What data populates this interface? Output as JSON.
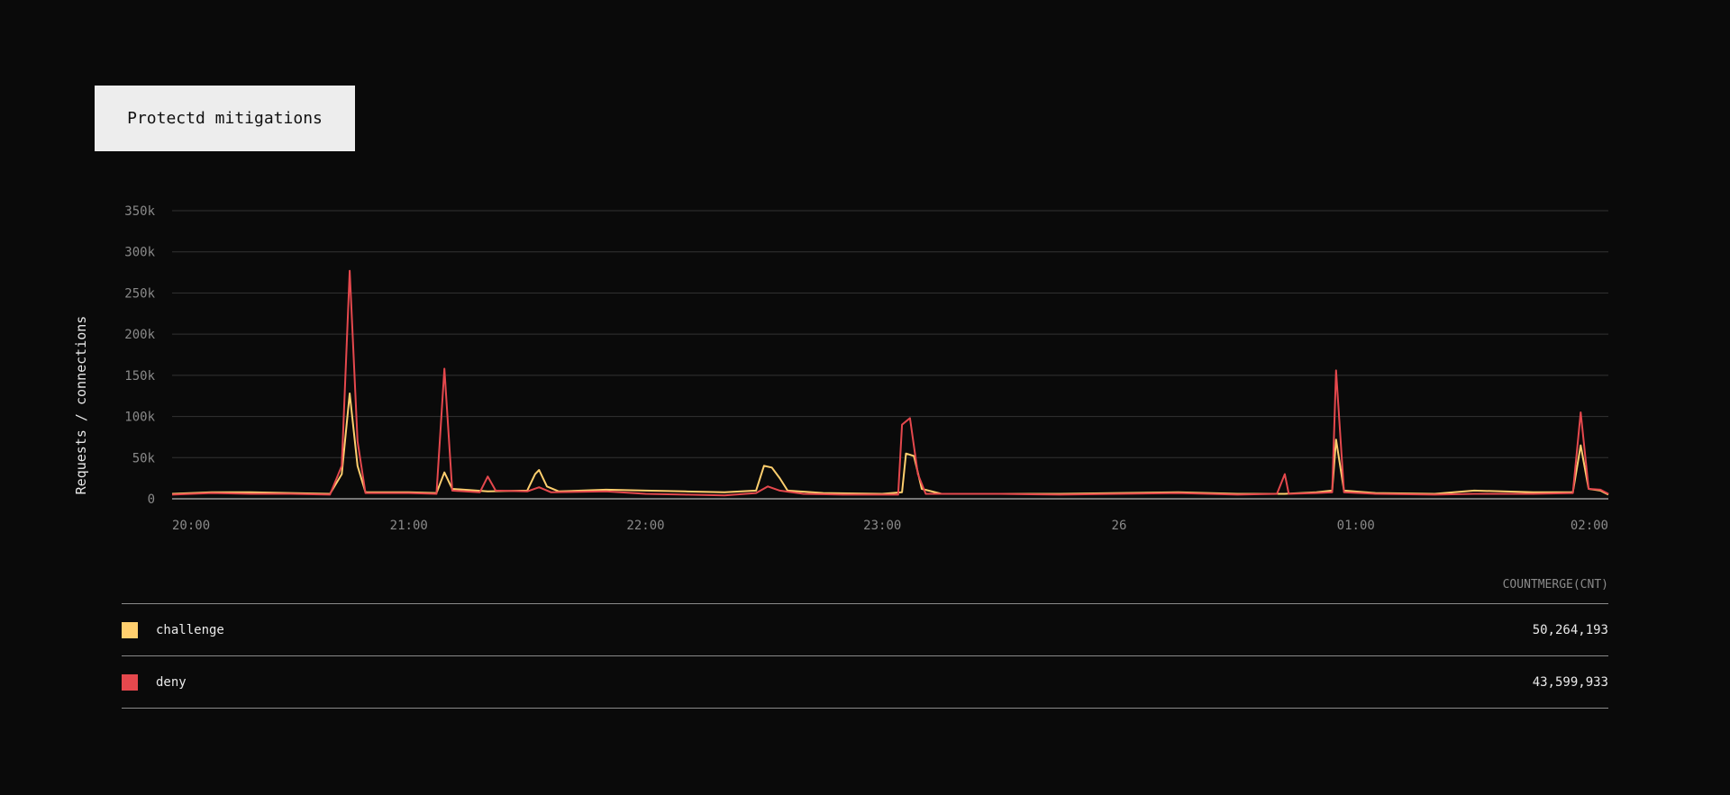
{
  "title": "Protectd mitigations",
  "chart_data": {
    "type": "line",
    "ylabel": "Requests / connections",
    "ylim": [
      0,
      350000
    ],
    "yticks": [
      0,
      50000,
      100000,
      150000,
      200000,
      250000,
      300000,
      350000
    ],
    "ytick_labels": [
      "0",
      "50k",
      "100k",
      "150k",
      "200k",
      "250k",
      "300k",
      "350k"
    ],
    "xlim": [
      "20:00",
      "02:04"
    ],
    "xticks": [
      {
        "time": "20:00",
        "label": "20:00"
      },
      {
        "time": "21:00",
        "label": "21:00"
      },
      {
        "time": "22:00",
        "label": "22:00"
      },
      {
        "time": "23:00",
        "label": "23:00"
      },
      {
        "time": "00:00",
        "label": "26"
      },
      {
        "time": "01:00",
        "label": "01:00"
      },
      {
        "time": "02:00",
        "label": "02:00"
      }
    ],
    "grid": true,
    "series": [
      {
        "name": "challenge",
        "color": "#ffcf6e",
        "points": [
          [
            "20:00",
            6000
          ],
          [
            "20:05",
            7000
          ],
          [
            "20:10",
            8000
          ],
          [
            "20:20",
            8000
          ],
          [
            "20:30",
            7000
          ],
          [
            "20:40",
            6000
          ],
          [
            "20:43",
            30000
          ],
          [
            "20:45",
            128000
          ],
          [
            "20:47",
            40000
          ],
          [
            "20:49",
            8000
          ],
          [
            "21:00",
            8000
          ],
          [
            "21:07",
            7000
          ],
          [
            "21:09",
            32000
          ],
          [
            "21:11",
            12000
          ],
          [
            "21:20",
            9000
          ],
          [
            "21:30",
            10000
          ],
          [
            "21:32",
            30000
          ],
          [
            "21:33",
            35000
          ],
          [
            "21:35",
            15000
          ],
          [
            "21:38",
            9000
          ],
          [
            "21:50",
            11000
          ],
          [
            "22:00",
            10000
          ],
          [
            "22:10",
            9000
          ],
          [
            "22:20",
            8000
          ],
          [
            "22:28",
            10000
          ],
          [
            "22:30",
            40000
          ],
          [
            "22:32",
            38000
          ],
          [
            "22:34",
            25000
          ],
          [
            "22:36",
            10000
          ],
          [
            "22:45",
            7000
          ],
          [
            "23:00",
            6000
          ],
          [
            "23:05",
            8000
          ],
          [
            "23:06",
            55000
          ],
          [
            "23:08",
            52000
          ],
          [
            "23:10",
            12000
          ],
          [
            "23:15",
            6000
          ],
          [
            "23:30",
            6000
          ],
          [
            "23:45",
            6000
          ],
          [
            "00:00",
            7000
          ],
          [
            "00:15",
            8000
          ],
          [
            "00:30",
            6000
          ],
          [
            "00:42",
            6000
          ],
          [
            "00:50",
            8000
          ],
          [
            "00:54",
            10000
          ],
          [
            "00:55",
            72000
          ],
          [
            "00:57",
            10000
          ],
          [
            "01:05",
            7000
          ],
          [
            "01:20",
            6000
          ],
          [
            "01:30",
            10000
          ],
          [
            "01:45",
            8000
          ],
          [
            "01:55",
            8000
          ],
          [
            "01:57",
            65000
          ],
          [
            "01:59",
            12000
          ],
          [
            "02:02",
            10000
          ],
          [
            "02:04",
            5000
          ]
        ]
      },
      {
        "name": "deny",
        "color": "#e5484d",
        "points": [
          [
            "20:00",
            5000
          ],
          [
            "20:05",
            6000
          ],
          [
            "20:10",
            7000
          ],
          [
            "20:20",
            6000
          ],
          [
            "20:30",
            6000
          ],
          [
            "20:40",
            5000
          ],
          [
            "20:43",
            40000
          ],
          [
            "20:45",
            277000
          ],
          [
            "20:47",
            70000
          ],
          [
            "20:49",
            7000
          ],
          [
            "21:00",
            7000
          ],
          [
            "21:07",
            6000
          ],
          [
            "21:09",
            158000
          ],
          [
            "21:11",
            10000
          ],
          [
            "21:18",
            8000
          ],
          [
            "21:20",
            27000
          ],
          [
            "21:22",
            10000
          ],
          [
            "21:30",
            9000
          ],
          [
            "21:33",
            14000
          ],
          [
            "21:36",
            8000
          ],
          [
            "21:50",
            9000
          ],
          [
            "22:00",
            6000
          ],
          [
            "22:10",
            5000
          ],
          [
            "22:20",
            4000
          ],
          [
            "22:28",
            7000
          ],
          [
            "22:31",
            15000
          ],
          [
            "22:34",
            10000
          ],
          [
            "22:40",
            6000
          ],
          [
            "22:50",
            5000
          ],
          [
            "23:00",
            5000
          ],
          [
            "23:04",
            5000
          ],
          [
            "23:05",
            90000
          ],
          [
            "23:07",
            98000
          ],
          [
            "23:09",
            30000
          ],
          [
            "23:11",
            6000
          ],
          [
            "23:30",
            6000
          ],
          [
            "23:45",
            5000
          ],
          [
            "00:00",
            6000
          ],
          [
            "00:15",
            7000
          ],
          [
            "00:30",
            5000
          ],
          [
            "00:40",
            6000
          ],
          [
            "00:42",
            30000
          ],
          [
            "00:43",
            6000
          ],
          [
            "00:50",
            7000
          ],
          [
            "00:54",
            8000
          ],
          [
            "00:55",
            156000
          ],
          [
            "00:57",
            8000
          ],
          [
            "01:05",
            6000
          ],
          [
            "01:20",
            5000
          ],
          [
            "01:30",
            6000
          ],
          [
            "01:45",
            6000
          ],
          [
            "01:55",
            7000
          ],
          [
            "01:57",
            105000
          ],
          [
            "01:59",
            12000
          ],
          [
            "02:02",
            11000
          ],
          [
            "02:04",
            6000
          ]
        ]
      }
    ]
  },
  "legend": {
    "header": "COUNTMERGE(CNT)",
    "rows": [
      {
        "label": "challenge",
        "value": "50,264,193",
        "color": "#ffcf6e"
      },
      {
        "label": "deny",
        "value": "43,599,933",
        "color": "#e5484d"
      }
    ]
  }
}
